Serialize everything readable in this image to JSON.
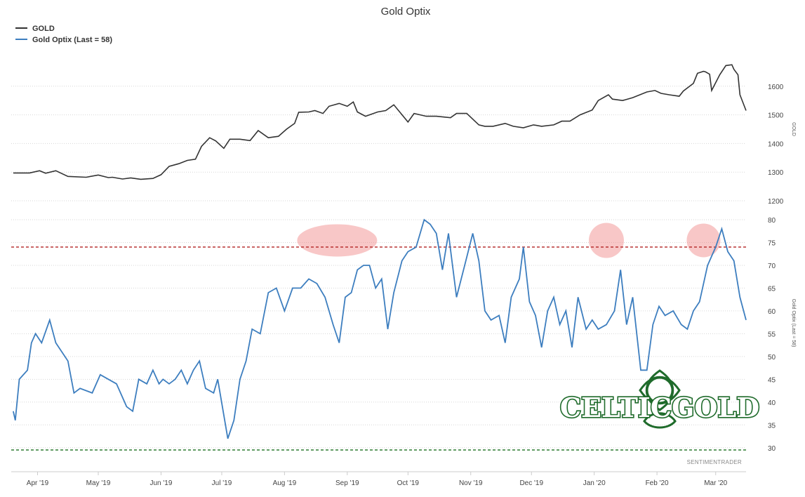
{
  "chart_data": [
    {
      "type": "line",
      "title": "Gold Optix",
      "xlabel": "",
      "ylabel": "GOLD",
      "x_tick_labels": [
        "Apr '19",
        "May '19",
        "Jun '19",
        "Jul '19",
        "Aug '19",
        "Sep '19",
        "Oct '19",
        "Nov '19",
        "Dec '19",
        "Jan '20",
        "Feb '20",
        "Mar '20"
      ],
      "ylim": [
        1200,
        1700
      ],
      "y_ticks": [
        1200,
        1300,
        1400,
        1500,
        1600
      ],
      "legend": "top-left",
      "grid": true,
      "series": [
        {
          "name": "GOLD",
          "color": "#333333",
          "points": [
            [
              "2019-03-20",
              1297
            ],
            [
              "2019-03-28",
              1297
            ],
            [
              "2019-04-02",
              1305
            ],
            [
              "2019-04-05",
              1296
            ],
            [
              "2019-04-10",
              1305
            ],
            [
              "2019-04-16",
              1285
            ],
            [
              "2019-04-25",
              1282
            ],
            [
              "2019-05-01",
              1290
            ],
            [
              "2019-05-06",
              1281
            ],
            [
              "2019-05-08",
              1282
            ],
            [
              "2019-05-13",
              1276
            ],
            [
              "2019-05-17",
              1280
            ],
            [
              "2019-05-22",
              1275
            ],
            [
              "2019-05-28",
              1278
            ],
            [
              "2019-06-01",
              1291
            ],
            [
              "2019-06-05",
              1320
            ],
            [
              "2019-06-10",
              1330
            ],
            [
              "2019-06-14",
              1341
            ],
            [
              "2019-06-18",
              1345
            ],
            [
              "2019-06-21",
              1390
            ],
            [
              "2019-06-25",
              1420
            ],
            [
              "2019-06-28",
              1409
            ],
            [
              "2019-07-02",
              1383
            ],
            [
              "2019-07-05",
              1415
            ],
            [
              "2019-07-10",
              1415
            ],
            [
              "2019-07-15",
              1410
            ],
            [
              "2019-07-19",
              1445
            ],
            [
              "2019-07-24",
              1420
            ],
            [
              "2019-07-29",
              1425
            ],
            [
              "2019-08-02",
              1450
            ],
            [
              "2019-08-06",
              1470
            ],
            [
              "2019-08-08",
              1509
            ],
            [
              "2019-08-13",
              1510
            ],
            [
              "2019-08-16",
              1515
            ],
            [
              "2019-08-20",
              1505
            ],
            [
              "2019-08-23",
              1530
            ],
            [
              "2019-08-28",
              1540
            ],
            [
              "2019-09-01",
              1530
            ],
            [
              "2019-09-04",
              1545
            ],
            [
              "2019-09-06",
              1510
            ],
            [
              "2019-09-10",
              1495
            ],
            [
              "2019-09-16",
              1510
            ],
            [
              "2019-09-20",
              1515
            ],
            [
              "2019-09-24",
              1535
            ],
            [
              "2019-10-01",
              1475
            ],
            [
              "2019-10-04",
              1505
            ],
            [
              "2019-10-10",
              1495
            ],
            [
              "2019-10-15",
              1495
            ],
            [
              "2019-10-22",
              1490
            ],
            [
              "2019-10-25",
              1505
            ],
            [
              "2019-10-30",
              1505
            ],
            [
              "2019-11-05",
              1465
            ],
            [
              "2019-11-08",
              1460
            ],
            [
              "2019-11-12",
              1460
            ],
            [
              "2019-11-18",
              1470
            ],
            [
              "2019-11-22",
              1460
            ],
            [
              "2019-11-27",
              1455
            ],
            [
              "2019-12-02",
              1465
            ],
            [
              "2019-12-06",
              1460
            ],
            [
              "2019-12-12",
              1465
            ],
            [
              "2019-12-16",
              1478
            ],
            [
              "2019-12-20",
              1478
            ],
            [
              "2019-12-25",
              1500
            ],
            [
              "2019-12-31",
              1517
            ],
            [
              "2020-01-03",
              1550
            ],
            [
              "2020-01-08",
              1570
            ],
            [
              "2020-01-10",
              1555
            ],
            [
              "2020-01-15",
              1550
            ],
            [
              "2020-01-20",
              1560
            ],
            [
              "2020-01-27",
              1580
            ],
            [
              "2020-01-31",
              1585
            ],
            [
              "2020-02-03",
              1575
            ],
            [
              "2020-02-07",
              1570
            ],
            [
              "2020-02-12",
              1565
            ],
            [
              "2020-02-14",
              1583
            ],
            [
              "2020-02-19",
              1610
            ],
            [
              "2020-02-21",
              1645
            ],
            [
              "2020-02-24",
              1652
            ],
            [
              "2020-02-25",
              1650
            ],
            [
              "2020-02-27",
              1642
            ],
            [
              "2020-02-28",
              1585
            ],
            [
              "2020-03-03",
              1640
            ],
            [
              "2020-03-06",
              1672
            ],
            [
              "2020-03-09",
              1675
            ],
            [
              "2020-03-10",
              1659
            ],
            [
              "2020-03-12",
              1640
            ],
            [
              "2020-03-13",
              1570
            ],
            [
              "2020-03-16",
              1515
            ]
          ]
        }
      ]
    },
    {
      "type": "line",
      "title": "",
      "xlabel": "",
      "ylabel": "Gold Optix (Last = 58)",
      "ylim": [
        30,
        80
      ],
      "y_ticks": [
        30,
        35,
        40,
        45,
        50,
        55,
        60,
        65,
        70,
        75,
        80
      ],
      "reference_lines": [
        {
          "y": 74,
          "color": "#b22222",
          "style": "dashed"
        },
        {
          "y": 29.5,
          "color": "#2e7d32",
          "style": "dashed"
        }
      ],
      "highlights": [
        {
          "x": "2019-08-27",
          "y": 75
        },
        {
          "x": "2020-01-07",
          "y": 75
        },
        {
          "x": "2020-02-24",
          "y": 75
        }
      ],
      "series": [
        {
          "name": "Gold Optix (Last = 58)",
          "color": "#3d7ebf",
          "points": [
            [
              "2019-03-20",
              38
            ],
            [
              "2019-03-21",
              36
            ],
            [
              "2019-03-23",
              45
            ],
            [
              "2019-03-27",
              47
            ],
            [
              "2019-03-29",
              53
            ],
            [
              "2019-03-31",
              55
            ],
            [
              "2019-04-03",
              53
            ],
            [
              "2019-04-07",
              58
            ],
            [
              "2019-04-10",
              53
            ],
            [
              "2019-04-16",
              49
            ],
            [
              "2019-04-19",
              42
            ],
            [
              "2019-04-22",
              43
            ],
            [
              "2019-04-28",
              42
            ],
            [
              "2019-05-02",
              46
            ],
            [
              "2019-05-06",
              45
            ],
            [
              "2019-05-10",
              44
            ],
            [
              "2019-05-15",
              39
            ],
            [
              "2019-05-18",
              38
            ],
            [
              "2019-05-21",
              45
            ],
            [
              "2019-05-25",
              44
            ],
            [
              "2019-05-28",
              47
            ],
            [
              "2019-05-31",
              44
            ],
            [
              "2019-06-02",
              45
            ],
            [
              "2019-06-05",
              44
            ],
            [
              "2019-06-08",
              45
            ],
            [
              "2019-06-11",
              47
            ],
            [
              "2019-06-14",
              44
            ],
            [
              "2019-06-17",
              47
            ],
            [
              "2019-06-20",
              49
            ],
            [
              "2019-06-23",
              43
            ],
            [
              "2019-06-27",
              42
            ],
            [
              "2019-06-29",
              45
            ],
            [
              "2019-07-04",
              32
            ],
            [
              "2019-07-07",
              36
            ],
            [
              "2019-07-10",
              45
            ],
            [
              "2019-07-13",
              49
            ],
            [
              "2019-07-16",
              56
            ],
            [
              "2019-07-20",
              55
            ],
            [
              "2019-07-24",
              64
            ],
            [
              "2019-07-28",
              65
            ],
            [
              "2019-08-01",
              60
            ],
            [
              "2019-08-05",
              65
            ],
            [
              "2019-08-09",
              65
            ],
            [
              "2019-08-13",
              67
            ],
            [
              "2019-08-17",
              66
            ],
            [
              "2019-08-21",
              63
            ],
            [
              "2019-08-25",
              57
            ],
            [
              "2019-08-28",
              53
            ],
            [
              "2019-08-31",
              63
            ],
            [
              "2019-09-03",
              64
            ],
            [
              "2019-09-06",
              69
            ],
            [
              "2019-09-09",
              70
            ],
            [
              "2019-09-12",
              70
            ],
            [
              "2019-09-15",
              65
            ],
            [
              "2019-09-18",
              67
            ],
            [
              "2019-09-21",
              56
            ],
            [
              "2019-09-24",
              64
            ],
            [
              "2019-09-28",
              71
            ],
            [
              "2019-10-01",
              73
            ],
            [
              "2019-10-05",
              74
            ],
            [
              "2019-10-09",
              80
            ],
            [
              "2019-10-12",
              79
            ],
            [
              "2019-10-15",
              77
            ],
            [
              "2019-10-18",
              69
            ],
            [
              "2019-10-21",
              77
            ],
            [
              "2019-10-25",
              63
            ],
            [
              "2019-10-29",
              70
            ],
            [
              "2019-11-02",
              77
            ],
            [
              "2019-11-05",
              71
            ],
            [
              "2019-11-08",
              60
            ],
            [
              "2019-11-11",
              58
            ],
            [
              "2019-11-15",
              59
            ],
            [
              "2019-11-18",
              53
            ],
            [
              "2019-11-21",
              63
            ],
            [
              "2019-11-25",
              67
            ],
            [
              "2019-11-27",
              74
            ],
            [
              "2019-11-30",
              62
            ],
            [
              "2019-12-03",
              59
            ],
            [
              "2019-12-06",
              52
            ],
            [
              "2019-12-09",
              60
            ],
            [
              "2019-12-12",
              63
            ],
            [
              "2019-12-15",
              57
            ],
            [
              "2019-12-18",
              60
            ],
            [
              "2019-12-21",
              52
            ],
            [
              "2019-12-24",
              63
            ],
            [
              "2019-12-28",
              56
            ],
            [
              "2019-12-31",
              58
            ],
            [
              "2020-01-03",
              56
            ],
            [
              "2020-01-07",
              57
            ],
            [
              "2020-01-11",
              60
            ],
            [
              "2020-01-14",
              69
            ],
            [
              "2020-01-17",
              57
            ],
            [
              "2020-01-20",
              63
            ],
            [
              "2020-01-24",
              47
            ],
            [
              "2020-01-27",
              47
            ],
            [
              "2020-01-30",
              57
            ],
            [
              "2020-02-02",
              61
            ],
            [
              "2020-02-05",
              59
            ],
            [
              "2020-02-09",
              60
            ],
            [
              "2020-02-13",
              57
            ],
            [
              "2020-02-16",
              56
            ],
            [
              "2020-02-19",
              60
            ],
            [
              "2020-02-22",
              62
            ],
            [
              "2020-02-26",
              70
            ],
            [
              "2020-03-01",
              74
            ],
            [
              "2020-03-04",
              78
            ],
            [
              "2020-03-07",
              73
            ],
            [
              "2020-03-10",
              71
            ],
            [
              "2020-03-13",
              63
            ],
            [
              "2020-03-16",
              58
            ]
          ]
        }
      ]
    }
  ],
  "watermark": "CELTICGOLD",
  "credit": "SENTIMENTRADER"
}
